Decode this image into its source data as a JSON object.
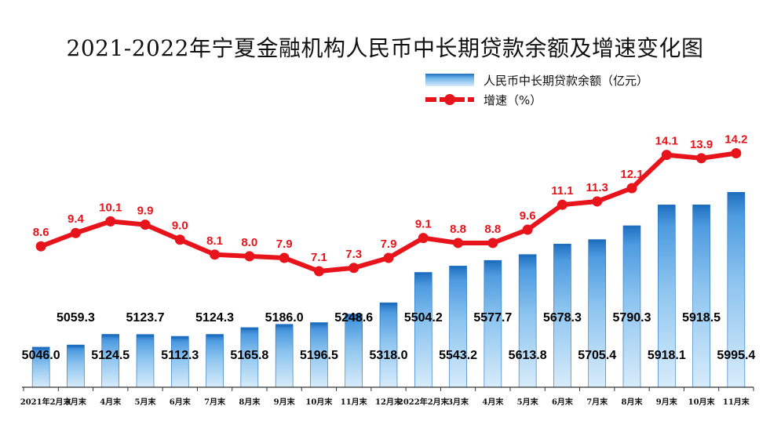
{
  "title": "2021-2022年宁夏金融机构人民币中长期贷款余额及增速变化图",
  "legend": {
    "bar_label": "人民币中长期贷款余额（亿元）",
    "line_label": "增速（%）"
  },
  "colors": {
    "bar_dark": "#1f6fc0",
    "bar_light": "#d8ecfa",
    "line": "#e8141b",
    "line_label": "#e8141b",
    "bar_label": "#000000",
    "axis": "#333333"
  },
  "chart_data": {
    "type": "bar",
    "categories": [
      "2021年2月末",
      "3月末",
      "4月末",
      "5月末",
      "6月末",
      "7月末",
      "8月末",
      "9月末",
      "10月末",
      "11月末",
      "12月末",
      "2022年2月末",
      "3月末",
      "4月末",
      "5月末",
      "6月末",
      "7月末",
      "8月末",
      "9月末",
      "10月末",
      "11月末"
    ],
    "series": [
      {
        "name": "人民币中长期贷款余额（亿元）",
        "type": "bar",
        "values": [
          5046.0,
          5059.3,
          5124.5,
          5123.7,
          5112.3,
          5124.3,
          5165.8,
          5186.0,
          5196.5,
          5248.6,
          5318.0,
          5504.2,
          5543.2,
          5577.7,
          5613.8,
          5678.3,
          5705.4,
          5790.3,
          5918.1,
          5918.5,
          5995.4
        ],
        "labels": [
          "5046.0",
          "5059.3",
          "5124.5",
          "5123.7",
          "5112.3",
          "5124.3",
          "5165.8",
          "5186.0",
          "5196.5",
          "5248.6",
          "5318.0",
          "5504.2",
          "5543.2",
          "5577.7",
          "5613.8",
          "5678.3",
          "5705.4",
          "5790.3",
          "5918.1",
          "5918.5",
          "5995.4"
        ]
      },
      {
        "name": "增速（%）",
        "type": "line",
        "values": [
          8.6,
          9.4,
          10.1,
          9.9,
          9.0,
          8.1,
          8.0,
          7.9,
          7.1,
          7.3,
          7.9,
          9.1,
          8.8,
          8.8,
          9.6,
          11.1,
          11.3,
          12.1,
          14.1,
          13.9,
          14.2
        ],
        "labels": [
          "8.6",
          "9.4",
          "10.1",
          "9.9",
          "9.0",
          "8.1",
          "8.0",
          "7.9",
          "7.1",
          "7.3",
          "7.9",
          "9.1",
          "8.8",
          "8.8",
          "9.6",
          "11.1",
          "11.3",
          "12.1",
          "14.1",
          "13.9",
          "14.2"
        ]
      }
    ],
    "legend_position": "top-right",
    "grid": false
  }
}
